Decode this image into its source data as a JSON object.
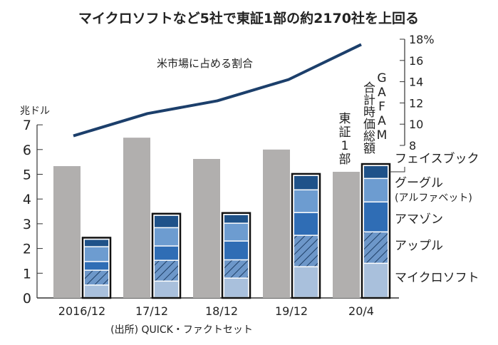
{
  "chart_data": {
    "type": "bar",
    "title": "マイクロソフトなど5社で東証1部の約2170社を上回る",
    "source": "(出所) QUICK・ファクトセット",
    "categories": [
      "2016/12",
      "17/12",
      "18/12",
      "19/12",
      "20/4"
    ],
    "left_axis": {
      "unit": "兆ドル",
      "ylim": [
        0,
        7
      ],
      "ticks": [
        "0",
        "1",
        "2",
        "3",
        "4",
        "5",
        "6",
        "7"
      ]
    },
    "right_axis": {
      "ylim": [
        8,
        18
      ],
      "ticks": [
        "8",
        "10",
        "12",
        "14",
        "16",
        "18%"
      ]
    },
    "tse_label": "東証1部",
    "gafam_label": "GAFAM合計時価総額",
    "tse_values": [
      5.33,
      6.48,
      5.62,
      6.0,
      5.1
    ],
    "stack_series": [
      {
        "name": "マイクロソフト",
        "values": [
          0.5,
          0.66,
          0.78,
          1.24,
          1.38
        ],
        "color": "#a9c0dc"
      },
      {
        "name": "アップル",
        "values": [
          0.6,
          0.84,
          0.74,
          1.27,
          1.27
        ],
        "color": "#6d97c9",
        "hatched": true
      },
      {
        "name": "アマゾン",
        "values": [
          0.35,
          0.58,
          0.76,
          0.92,
          1.21
        ],
        "color": "#2f6db5"
      },
      {
        "name": "グーグル",
        "sub": "(アルファベット)",
        "values": [
          0.6,
          0.74,
          0.72,
          0.92,
          0.95
        ],
        "color": "#6d9cd0"
      },
      {
        "name": "フェイスブック",
        "values": [
          0.3,
          0.5,
          0.35,
          0.58,
          0.52
        ],
        "color": "#1f5289"
      }
    ],
    "line": {
      "name": "米市場に占める割合",
      "values": [
        8.9,
        11.0,
        12.2,
        14.2,
        17.5
      ],
      "color": "#1c3f6b"
    },
    "tse_color": "#b1afae",
    "grid": false
  }
}
